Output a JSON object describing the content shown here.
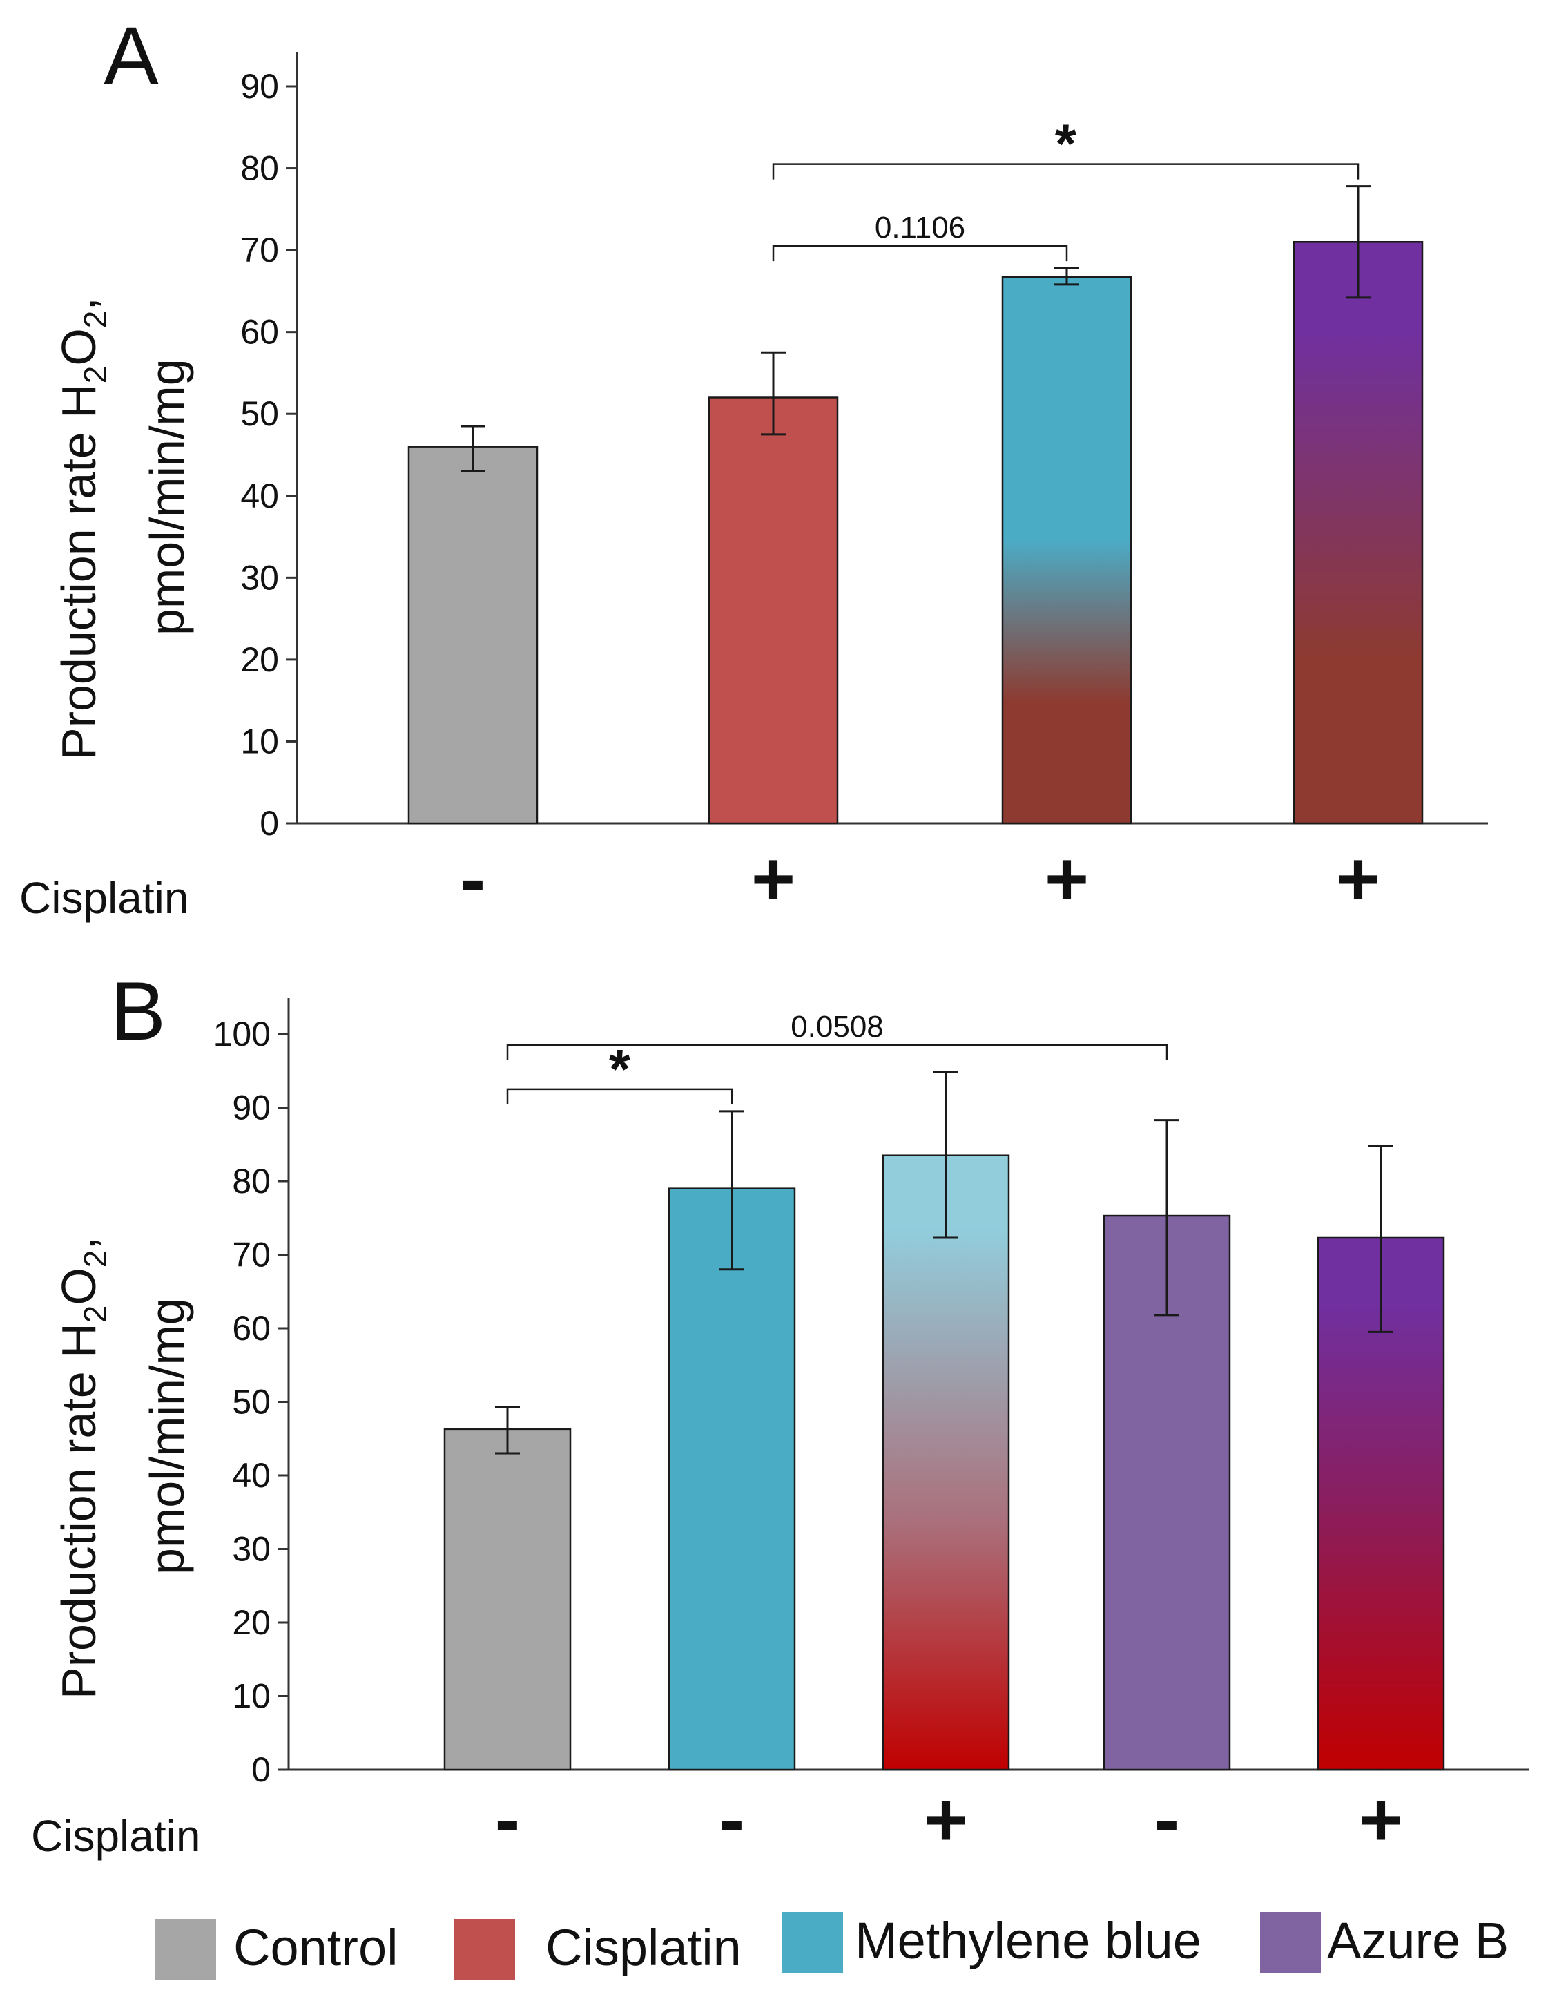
{
  "chart_data": [
    {
      "type": "bar",
      "panel_label": "A",
      "ylabel_line1": "Production rate H",
      "ylabel_sub1": "2",
      "ylabel_mid": "O",
      "ylabel_sub2": "2",
      "ylabel_end": ",",
      "ylabel_line2": "pmol/min/mg",
      "ylim": [
        0,
        90
      ],
      "yticks": [
        "0",
        "10",
        "20",
        "30",
        "40",
        "50",
        "60",
        "70",
        "80",
        "90"
      ],
      "row_label": "Cisplatin",
      "bars": [
        {
          "value": 46,
          "err_low": 43,
          "err_high": 48.5,
          "cisplatin": "-",
          "top_color": "#a6a6a6",
          "bottom_color": "#a6a6a6"
        },
        {
          "value": 52,
          "err_low": 47.5,
          "err_high": 57.5,
          "cisplatin": "+",
          "top_color": "#c0504d",
          "bottom_color": "#c0504d"
        },
        {
          "value": 66.7,
          "err_low": 65.8,
          "err_high": 67.8,
          "cisplatin": "+",
          "top_color": "#4bacc6",
          "bottom_color": "#8e3a30"
        },
        {
          "value": 71,
          "err_low": 64.2,
          "err_high": 77.8,
          "cisplatin": "+",
          "top_color": "#7030a0",
          "bottom_color": "#8e3a30"
        }
      ],
      "annotations": [
        {
          "from": 1,
          "to": 2,
          "y": 70.5,
          "label": "0.1106",
          "kind": "pval"
        },
        {
          "from": 1,
          "to": 3,
          "y": 80.5,
          "label": "*",
          "kind": "star"
        }
      ]
    },
    {
      "type": "bar",
      "panel_label": "B",
      "ylabel_line1": "Production rate H",
      "ylabel_sub1": "2",
      "ylabel_mid": "O",
      "ylabel_sub2": "2",
      "ylabel_end": ",",
      "ylabel_line2": "pmol/min/mg",
      "ylim": [
        0,
        100
      ],
      "yticks": [
        "0",
        "10",
        "20",
        "30",
        "40",
        "50",
        "60",
        "70",
        "80",
        "90",
        "100"
      ],
      "row_label": "Cisplatin",
      "bars": [
        {
          "value": 46.3,
          "err_low": 43,
          "err_high": 49.3,
          "cisplatin": "-",
          "top_color": "#a6a6a6",
          "bottom_color": "#a6a6a6"
        },
        {
          "value": 79,
          "err_low": 68,
          "err_high": 89.5,
          "cisplatin": "-",
          "top_color": "#4bacc6",
          "bottom_color": "#4bacc6"
        },
        {
          "value": 83.5,
          "err_low": 72.3,
          "err_high": 94.8,
          "cisplatin": "+",
          "top_color": "#92cddc",
          "bottom_color": "#c00000"
        },
        {
          "value": 75.3,
          "err_low": 61.8,
          "err_high": 88.3,
          "cisplatin": "-",
          "top_color": "#8064a2",
          "bottom_color": "#8064a2"
        },
        {
          "value": 72.3,
          "err_low": 59.5,
          "err_high": 84.8,
          "cisplatin": "+",
          "top_color": "#7030a0",
          "bottom_color": "#c00000"
        }
      ],
      "annotations": [
        {
          "from": 0,
          "to": 1,
          "y": 92.5,
          "label": "*",
          "kind": "star"
        },
        {
          "from": 0,
          "to": 3,
          "y": 98.5,
          "label": "0.0508",
          "kind": "pval"
        }
      ]
    }
  ],
  "legend": [
    {
      "label": "Control",
      "color": "#a6a6a6"
    },
    {
      "label": "Cisplatin",
      "color": "#c0504d"
    },
    {
      "label": "Methylene blue",
      "color": "#4bacc6"
    },
    {
      "label": "Azure B",
      "color": "#8064a2"
    }
  ]
}
